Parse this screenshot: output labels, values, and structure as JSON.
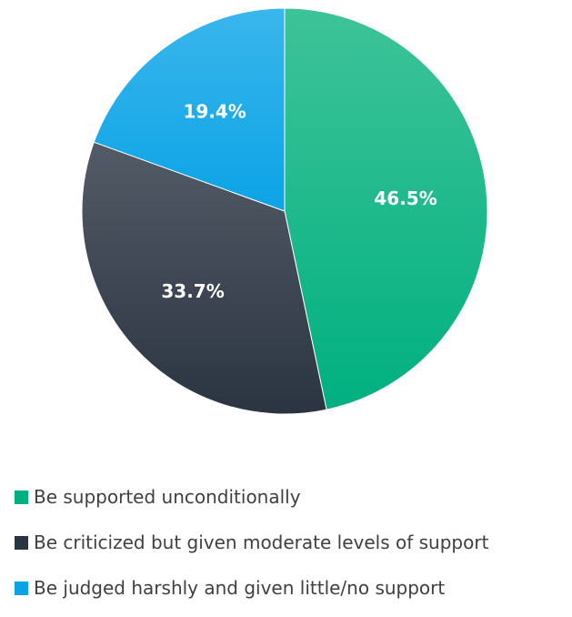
{
  "chart_data": {
    "type": "pie",
    "start_angle": "12 o'clock",
    "direction": "clockwise",
    "legend_position": "bottom",
    "slices": [
      {
        "label": "Be supported unconditionally",
        "value": 46.5,
        "display": "46.5%",
        "color": "#00b080",
        "color_light": "#3ec398"
      },
      {
        "label": "Be criticized but given moderate levels of support",
        "value": 33.7,
        "display": "33.7%",
        "color": "#2b3441",
        "color_light": "#525b66"
      },
      {
        "label": "Be judged harshly and given little/no support",
        "value": 19.4,
        "display": "19.4%",
        "color": "#0ba3e6",
        "color_light": "#3ab6ec"
      }
    ]
  }
}
